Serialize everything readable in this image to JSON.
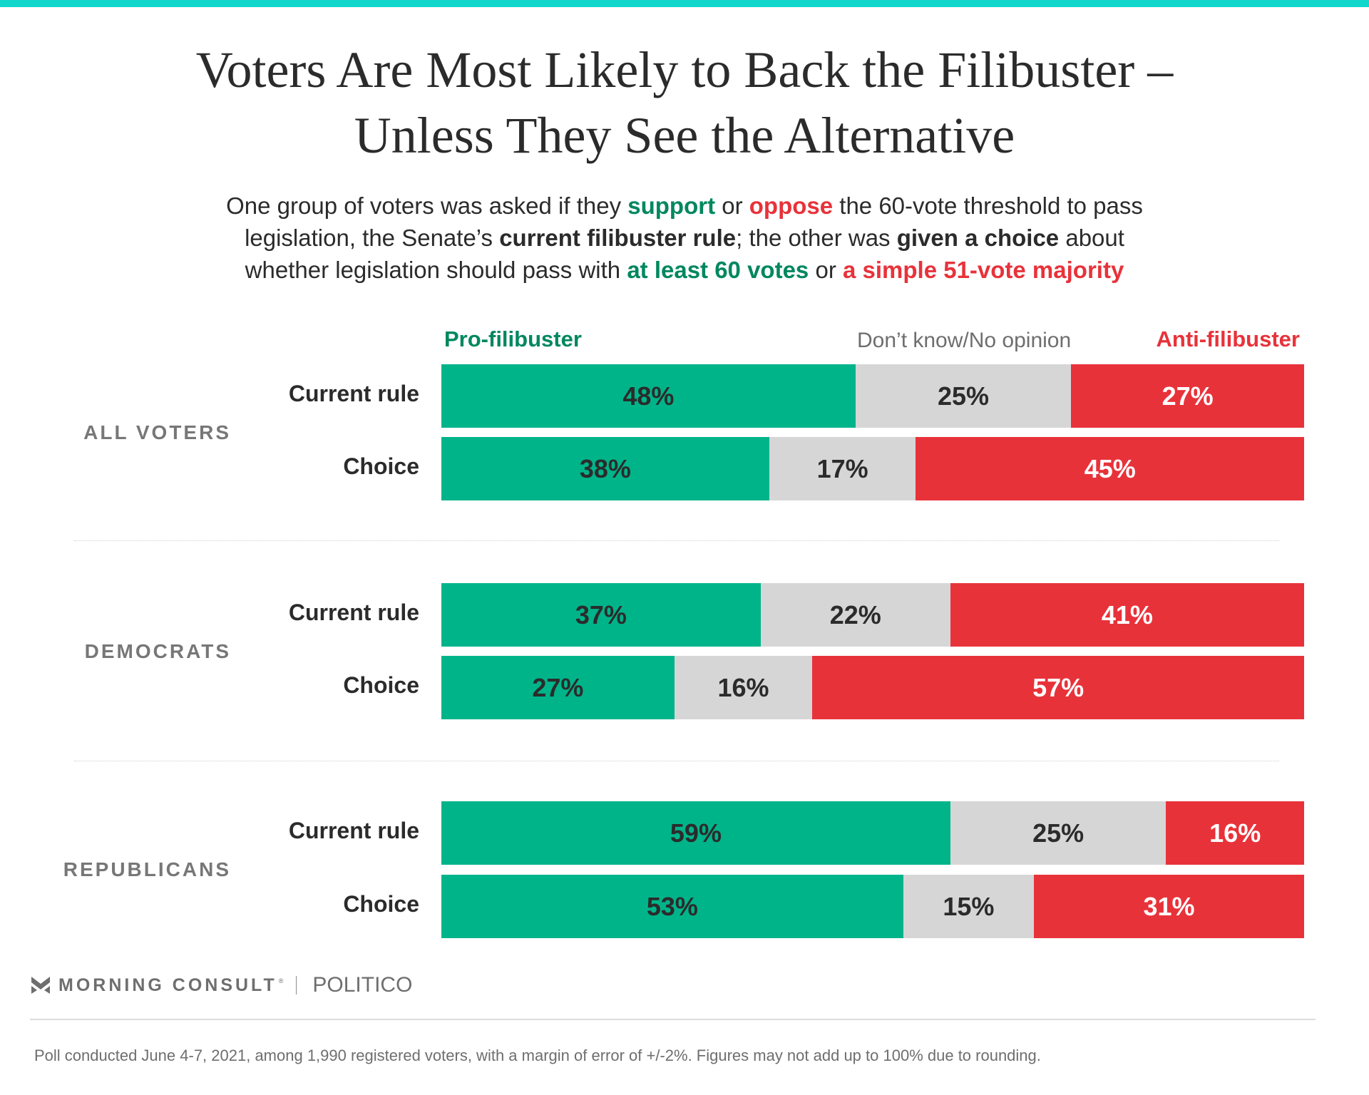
{
  "header": {
    "title_line1": "Voters Are Most Likely to Back the Filibuster –",
    "title_line2": "Unless They See the Alternative",
    "subtitle": {
      "line1": [
        {
          "text": "One group of voters was asked if they ",
          "style": "plain"
        },
        {
          "text": "support",
          "style": "green"
        },
        {
          "text": " or ",
          "style": "plain"
        },
        {
          "text": "oppose",
          "style": "red"
        },
        {
          "text": " the 60-vote threshold to pass",
          "style": "plain"
        }
      ],
      "line2": [
        {
          "text": "legislation, the Senate’s ",
          "style": "plain"
        },
        {
          "text": "current filibuster rule",
          "style": "bold"
        },
        {
          "text": "; the other was ",
          "style": "plain"
        },
        {
          "text": "given a choice",
          "style": "bold"
        },
        {
          "text": " about",
          "style": "plain"
        }
      ],
      "line3": [
        {
          "text": "whether legislation should pass with ",
          "style": "plain"
        },
        {
          "text": "at least 60 votes",
          "style": "green"
        },
        {
          "text": " or ",
          "style": "plain"
        },
        {
          "text": "a simple 51-vote majority",
          "style": "red"
        }
      ]
    }
  },
  "colors": {
    "top_band": "#10d6cc",
    "pro": "#00b48a",
    "pro_text": "#00875f",
    "dont_know": "#d6d6d6",
    "anti": "#e8323a",
    "text_dark": "#2b2b2b",
    "text_gray": "#6e6e6e"
  },
  "chart_data": {
    "type": "bar",
    "orientation": "horizontal",
    "stacked": true,
    "title": "Voters Are Most Likely to Back the Filibuster – Unless They See the Alternative",
    "xlabel": "",
    "ylabel": "",
    "xlim": [
      0,
      100
    ],
    "unit": "%",
    "legend": {
      "placement": "top",
      "entries": [
        "Pro-filibuster",
        "Don’t know/No opinion",
        "Anti-filibuster"
      ]
    },
    "series": [
      {
        "name": "Pro-filibuster",
        "key": "pro"
      },
      {
        "name": "Don’t know/No opinion",
        "key": "dk"
      },
      {
        "name": "Anti-filibuster",
        "key": "anti"
      }
    ],
    "groups": [
      {
        "label": "ALL VOTERS",
        "rows": [
          {
            "label": "Current rule",
            "values": [
              48,
              25,
              27
            ]
          },
          {
            "label": "Choice",
            "values": [
              38,
              17,
              45
            ]
          }
        ]
      },
      {
        "label": "DEMOCRATS",
        "rows": [
          {
            "label": "Current rule",
            "values": [
              37,
              22,
              41
            ]
          },
          {
            "label": "Choice",
            "values": [
              27,
              16,
              57
            ]
          }
        ]
      },
      {
        "label": "REPUBLICANS",
        "rows": [
          {
            "label": "Current rule",
            "values": [
              59,
              25,
              16
            ]
          },
          {
            "label": "Choice",
            "values": [
              53,
              15,
              31
            ]
          }
        ]
      }
    ]
  },
  "footer": {
    "logo_text": "MORNING CONSULT",
    "logo_icon": "morning-consult-chevron-icon",
    "registered_mark": "®",
    "partner": "POLITICO",
    "footnote": "Poll conducted June 4-7, 2021, among 1,990 registered voters, with a margin of error of +/-2%. Figures may not add up to 100% due to rounding."
  }
}
